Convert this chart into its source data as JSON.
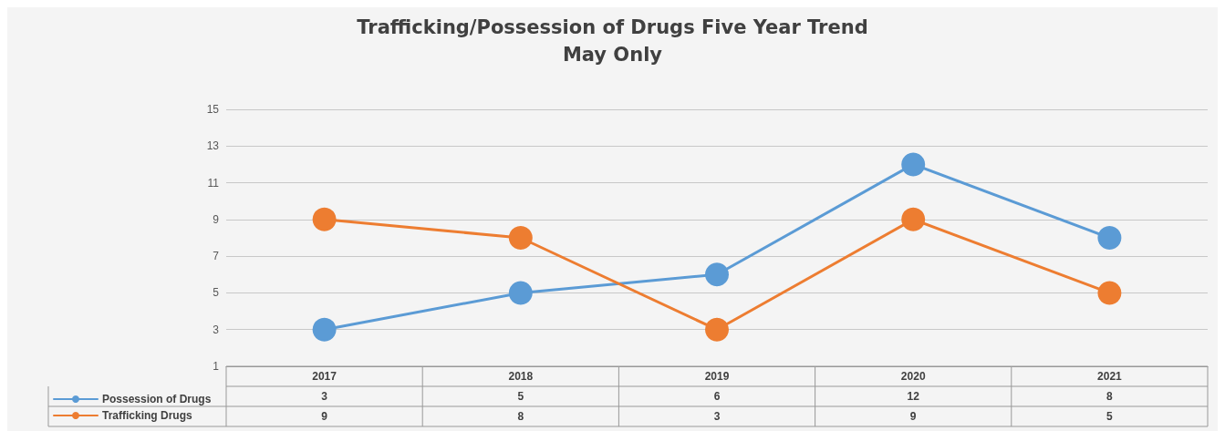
{
  "chart_data": {
    "type": "line",
    "title": "Trafficking/Possession of Drugs Five Year Trend",
    "subtitle": "May Only",
    "categories": [
      "2017",
      "2018",
      "2019",
      "2020",
      "2021"
    ],
    "series": [
      {
        "name": "Possession of Drugs",
        "color": "#5b9bd5",
        "values": [
          3,
          5,
          6,
          12,
          8
        ]
      },
      {
        "name": "Trafficking Drugs",
        "color": "#ed7d31",
        "values": [
          9,
          8,
          3,
          9,
          5
        ]
      }
    ],
    "ylim": [
      1,
      15
    ],
    "yticks": [
      1,
      3,
      5,
      7,
      9,
      11,
      13,
      15
    ],
    "grid": "y",
    "legend": "bottom left",
    "marker": "circle",
    "line_style": "solid",
    "data_labels": true
  }
}
